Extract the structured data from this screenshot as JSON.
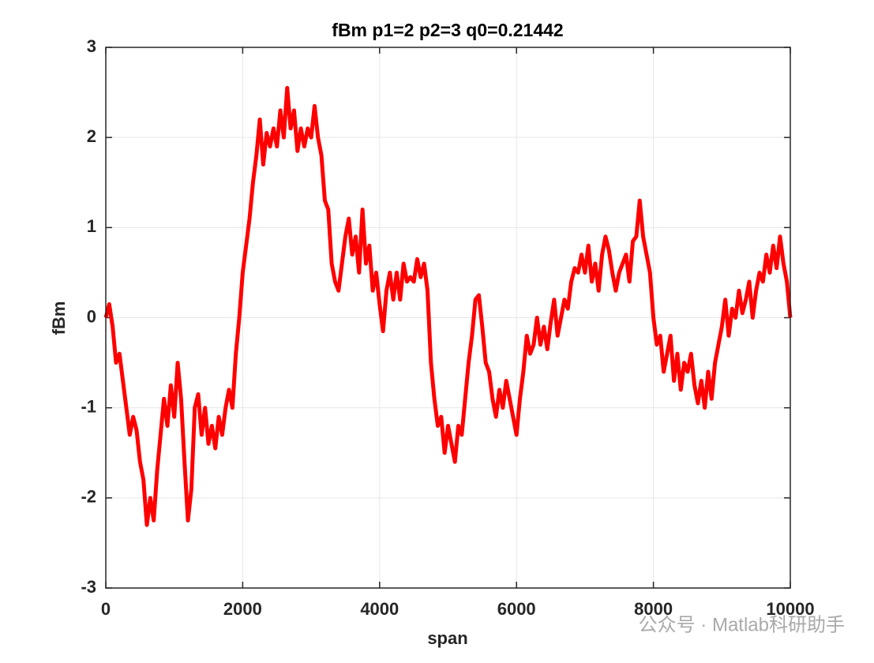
{
  "chart_data": {
    "type": "line",
    "title": "fBm p1=2 p2=3 q0=0.21442",
    "x_label": "span",
    "y_label": "fBm",
    "watermark": "公众号 · Matlab科研助手",
    "xlim": [
      0,
      10000
    ],
    "ylim": [
      -3,
      3
    ],
    "xticks": [
      0,
      2000,
      4000,
      6000,
      8000,
      10000
    ],
    "yticks": [
      -3,
      -2,
      -1,
      0,
      1,
      2,
      3
    ],
    "grid": true,
    "x": [
      0,
      50,
      100,
      150,
      200,
      250,
      300,
      350,
      400,
      450,
      500,
      550,
      600,
      650,
      700,
      750,
      800,
      850,
      900,
      950,
      1000,
      1050,
      1100,
      1150,
      1200,
      1250,
      1300,
      1350,
      1400,
      1450,
      1500,
      1550,
      1600,
      1650,
      1700,
      1750,
      1800,
      1850,
      1900,
      1950,
      2000,
      2050,
      2100,
      2150,
      2200,
      2250,
      2300,
      2350,
      2400,
      2450,
      2500,
      2550,
      2600,
      2650,
      2700,
      2750,
      2800,
      2850,
      2900,
      2950,
      3000,
      3050,
      3100,
      3150,
      3200,
      3250,
      3300,
      3350,
      3400,
      3450,
      3500,
      3550,
      3600,
      3650,
      3700,
      3750,
      3800,
      3850,
      3900,
      3950,
      4000,
      4050,
      4100,
      4150,
      4200,
      4250,
      4300,
      4350,
      4400,
      4450,
      4500,
      4550,
      4600,
      4650,
      4700,
      4750,
      4800,
      4850,
      4900,
      4950,
      5000,
      5050,
      5100,
      5150,
      5200,
      5250,
      5300,
      5350,
      5400,
      5450,
      5500,
      5550,
      5600,
      5650,
      5700,
      5750,
      5800,
      5850,
      5900,
      5950,
      6000,
      6050,
      6100,
      6150,
      6200,
      6250,
      6300,
      6350,
      6400,
      6450,
      6500,
      6550,
      6600,
      6650,
      6700,
      6750,
      6800,
      6850,
      6900,
      6950,
      7000,
      7050,
      7100,
      7150,
      7200,
      7250,
      7300,
      7350,
      7400,
      7450,
      7500,
      7550,
      7600,
      7650,
      7700,
      7750,
      7800,
      7850,
      7900,
      7950,
      8000,
      8050,
      8100,
      8150,
      8200,
      8250,
      8300,
      8350,
      8400,
      8450,
      8500,
      8550,
      8600,
      8650,
      8700,
      8750,
      8800,
      8850,
      8900,
      8950,
      9000,
      9050,
      9100,
      9150,
      9200,
      9250,
      9300,
      9350,
      9400,
      9450,
      9500,
      9550,
      9600,
      9650,
      9700,
      9750,
      9800,
      9850,
      9900,
      9950,
      10000
    ],
    "series": [
      {
        "name": "fBm",
        "color": "#ff0000",
        "values": [
          0,
          0.15,
          -0.1,
          -0.5,
          -0.4,
          -0.7,
          -1.0,
          -1.3,
          -1.1,
          -1.25,
          -1.6,
          -1.8,
          -2.3,
          -2.0,
          -2.25,
          -1.7,
          -1.3,
          -0.9,
          -1.2,
          -0.75,
          -1.1,
          -0.5,
          -0.9,
          -1.6,
          -2.25,
          -1.9,
          -1.0,
          -0.85,
          -1.3,
          -1.0,
          -1.4,
          -1.2,
          -1.45,
          -1.1,
          -1.3,
          -1.0,
          -0.8,
          -1.0,
          -0.4,
          0.0,
          0.5,
          0.8,
          1.1,
          1.5,
          1.8,
          2.2,
          1.7,
          2.05,
          1.9,
          2.1,
          1.9,
          2.3,
          2.0,
          2.55,
          2.1,
          2.3,
          1.85,
          2.1,
          1.9,
          2.1,
          2.0,
          2.35,
          2.0,
          1.8,
          1.3,
          1.2,
          0.6,
          0.4,
          0.3,
          0.6,
          0.9,
          1.1,
          0.7,
          0.9,
          0.5,
          1.2,
          0.6,
          0.8,
          0.3,
          0.5,
          0.15,
          -0.15,
          0.3,
          0.5,
          0.2,
          0.5,
          0.2,
          0.6,
          0.4,
          0.45,
          0.4,
          0.65,
          0.45,
          0.6,
          0.3,
          -0.5,
          -0.9,
          -1.2,
          -1.1,
          -1.5,
          -1.2,
          -1.4,
          -1.6,
          -1.2,
          -1.3,
          -0.9,
          -0.5,
          -0.2,
          0.2,
          0.25,
          -0.1,
          -0.5,
          -0.6,
          -0.9,
          -1.1,
          -0.8,
          -1.0,
          -0.7,
          -0.9,
          -1.1,
          -1.3,
          -0.9,
          -0.6,
          -0.2,
          -0.4,
          -0.3,
          0.0,
          -0.3,
          -0.1,
          -0.35,
          -0.05,
          0.2,
          -0.2,
          0.0,
          0.2,
          0.1,
          0.4,
          0.55,
          0.5,
          0.7,
          0.5,
          0.8,
          0.4,
          0.6,
          0.3,
          0.7,
          0.9,
          0.75,
          0.5,
          0.3,
          0.5,
          0.6,
          0.7,
          0.4,
          0.85,
          0.9,
          1.3,
          0.9,
          0.7,
          0.5,
          0.0,
          -0.3,
          -0.2,
          -0.6,
          -0.4,
          -0.2,
          -0.7,
          -0.4,
          -0.8,
          -0.5,
          -0.6,
          -0.4,
          -0.75,
          -0.95,
          -0.7,
          -1.0,
          -0.6,
          -0.9,
          -0.5,
          -0.3,
          -0.1,
          0.2,
          -0.2,
          0.1,
          0.0,
          0.3,
          0.05,
          0.2,
          0.4,
          0.0,
          0.3,
          0.5,
          0.4,
          0.7,
          0.5,
          0.8,
          0.55,
          0.9,
          0.6,
          0.4,
          0.0
        ]
      }
    ]
  }
}
